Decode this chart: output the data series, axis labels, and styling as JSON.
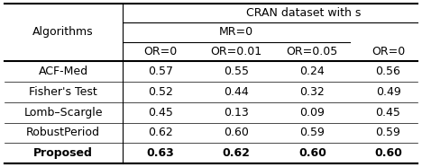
{
  "title_top": "CRAN dataset with s",
  "col_group_label": "MR=0",
  "col_headers": [
    "OR=0",
    "OR=0.01",
    "OR=0.05",
    "OR=0"
  ],
  "row_labels": [
    "ACF-Med",
    "Fisher's Test",
    "Lomb–Scargle",
    "RobustPeriod",
    "Proposed"
  ],
  "row_bold": [
    false,
    false,
    false,
    false,
    true
  ],
  "values": [
    [
      "0.57",
      "0.55",
      "0.24",
      "0.56"
    ],
    [
      "0.52",
      "0.44",
      "0.32",
      "0.49"
    ],
    [
      "0.45",
      "0.13",
      "0.09",
      "0.45"
    ],
    [
      "0.62",
      "0.60",
      "0.59",
      "0.59"
    ],
    [
      "0.63",
      "0.62",
      "0.60",
      "0.60"
    ]
  ],
  "values_bold": [
    [
      false,
      false,
      false,
      false
    ],
    [
      false,
      false,
      false,
      false
    ],
    [
      false,
      false,
      false,
      false
    ],
    [
      false,
      false,
      false,
      false
    ],
    [
      true,
      true,
      true,
      true
    ]
  ],
  "algorithm_col_label": "Algorithms",
  "background_color": "#ffffff",
  "font_size": 9
}
